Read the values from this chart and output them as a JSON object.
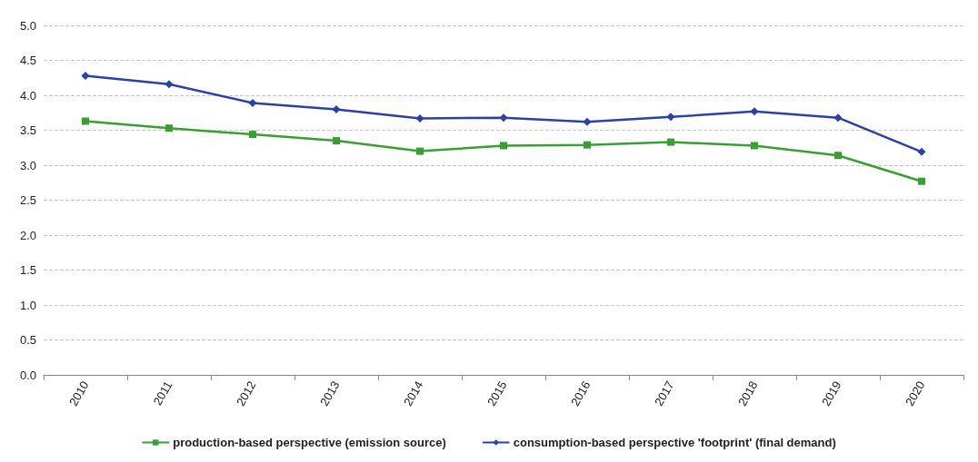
{
  "chart_data": {
    "type": "line",
    "categories": [
      "2010",
      "2011",
      "2012",
      "2013",
      "2014",
      "2015",
      "2016",
      "2017",
      "2018",
      "2019",
      "2020"
    ],
    "series": [
      {
        "name": "production-based perspective (emission source)",
        "color": "#3a9f32",
        "marker": "square",
        "values": [
          3.63,
          3.53,
          3.44,
          3.35,
          3.2,
          3.28,
          3.29,
          3.33,
          3.28,
          3.14,
          2.77
        ]
      },
      {
        "name": "consumption-based perspective 'footprint' (final demand)",
        "color": "#2b41a3",
        "marker": "diamond",
        "values": [
          4.28,
          4.16,
          3.89,
          3.8,
          3.67,
          3.68,
          3.62,
          3.69,
          3.77,
          3.68,
          3.19
        ]
      }
    ],
    "ylim": [
      0,
      5
    ],
    "yticks": [
      {
        "value": 0,
        "label": "0.0"
      },
      {
        "value": 0.5,
        "label": "0.5"
      },
      {
        "value": 1,
        "label": "1.0"
      },
      {
        "value": 1.5,
        "label": "1.5"
      },
      {
        "value": 2,
        "label": "2.0"
      },
      {
        "value": 2.5,
        "label": "2.5"
      },
      {
        "value": 3,
        "label": "3.0"
      },
      {
        "value": 3.5,
        "label": "3.5"
      },
      {
        "value": 4,
        "label": "4.0"
      },
      {
        "value": 4.5,
        "label": "4.5"
      },
      {
        "value": 5,
        "label": "5.0"
      }
    ],
    "grid": "y",
    "legend": "bottom",
    "line_style": "solid"
  }
}
